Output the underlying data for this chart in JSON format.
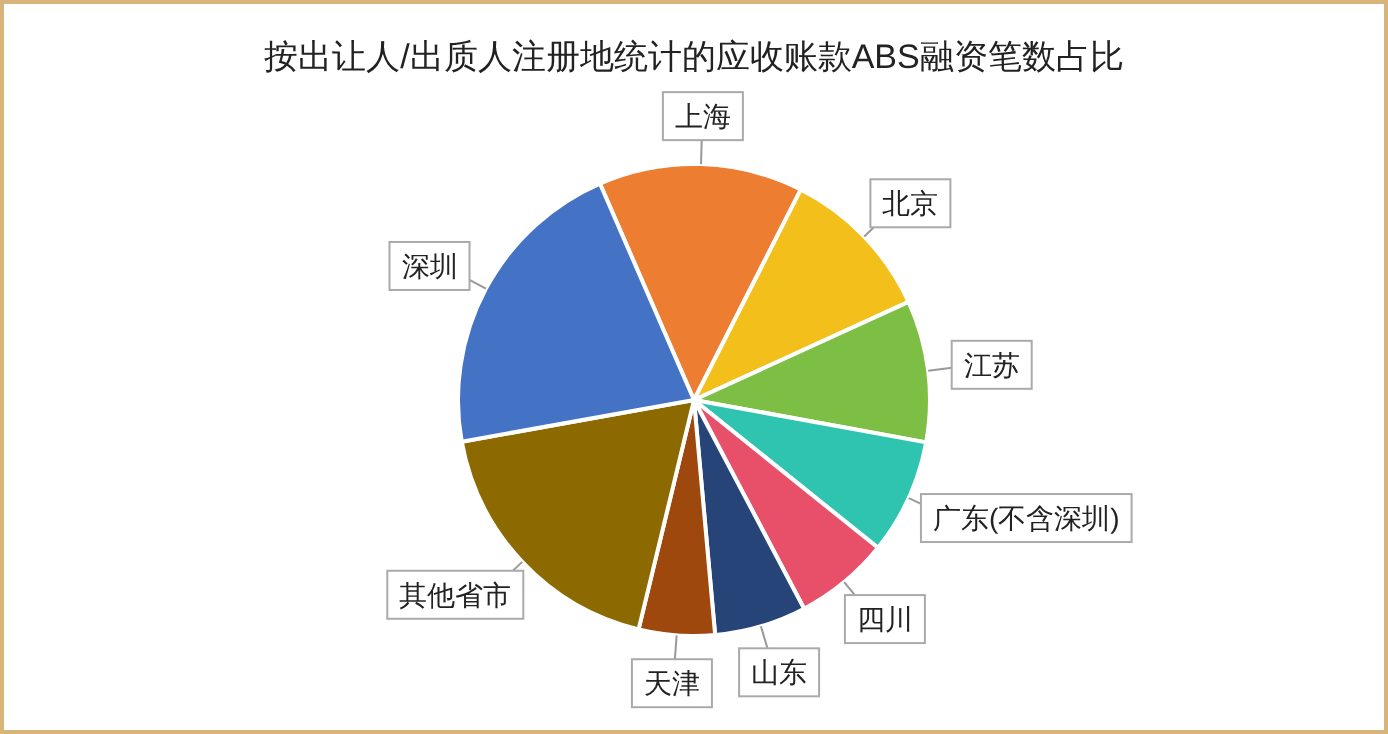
{
  "chart_data": {
    "type": "pie",
    "title": "按出让人/出质人注册地统计的应收账款ABS融资笔数占比",
    "categories": [
      "上海",
      "北京",
      "江苏",
      "广东(不含深圳)",
      "四川",
      "山东",
      "天津",
      "其他省市",
      "深圳"
    ],
    "values": [
      14.0,
      10.7,
      9.7,
      7.9,
      6.5,
      6.3,
      5.2,
      18.4,
      21.3
    ],
    "colors": [
      "#ed7d31",
      "#f2bf1b",
      "#7dbf44",
      "#2ec4b0",
      "#e8506a",
      "#264478",
      "#9e480e",
      "#8c6a00",
      "#4472c4"
    ]
  }
}
